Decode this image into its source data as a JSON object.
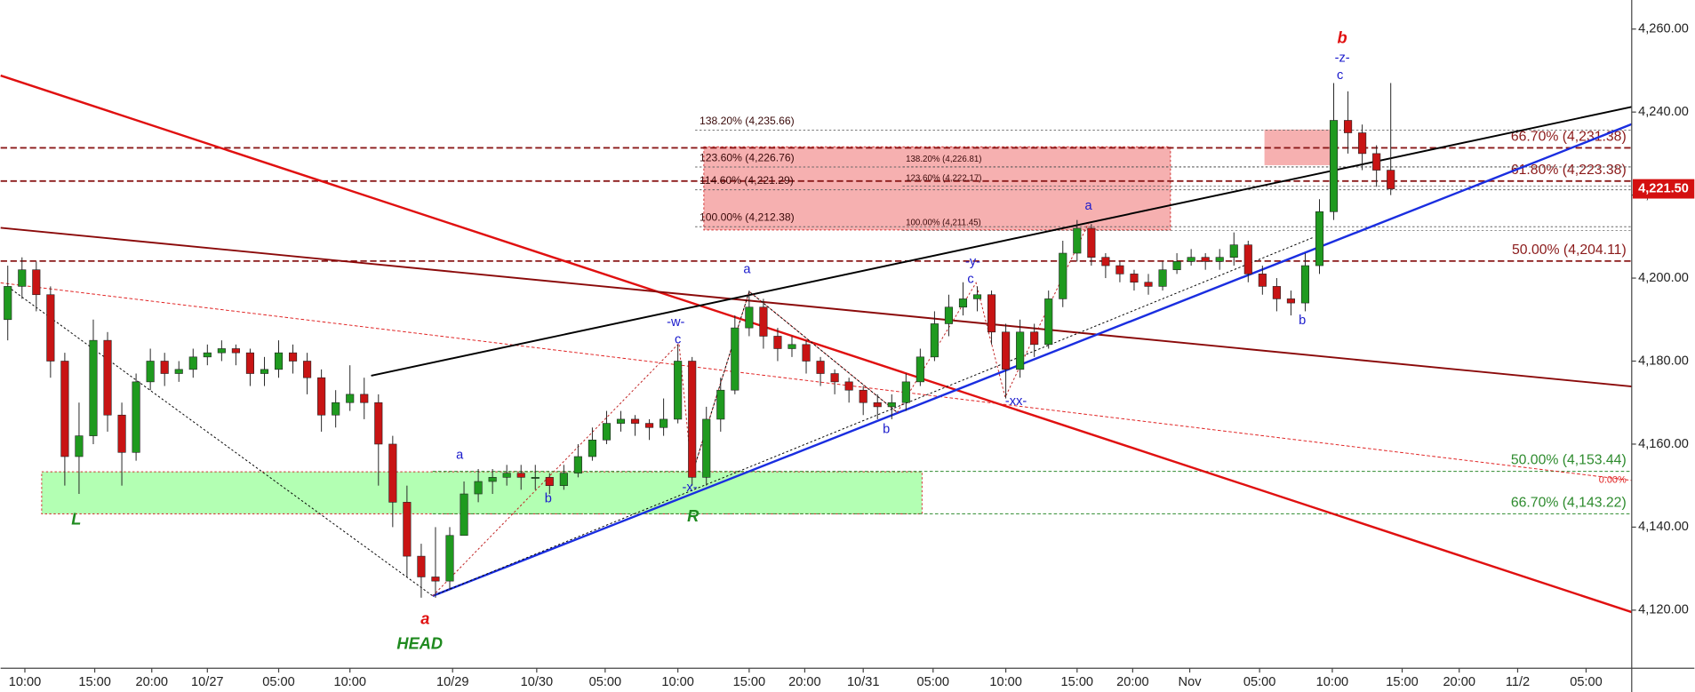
{
  "chart_data": {
    "type": "candlestick",
    "candles": {
      "x": [
        0,
        1,
        2,
        3,
        4,
        5,
        6,
        7,
        8,
        9,
        10,
        11,
        12,
        13,
        14,
        15,
        16,
        17,
        18,
        19,
        20,
        21,
        22,
        23,
        24,
        25,
        26,
        27,
        28,
        29,
        30,
        31,
        32,
        33,
        34,
        35,
        36,
        37,
        38,
        39,
        40,
        41,
        42,
        43,
        44,
        45,
        46,
        47,
        48,
        49,
        50,
        51,
        52,
        53,
        54,
        55,
        56,
        57,
        58,
        59,
        60,
        61,
        62,
        63,
        64,
        65,
        66,
        67,
        68,
        69,
        70,
        71,
        72,
        73,
        74,
        75,
        76,
        77,
        78,
        79,
        80,
        81,
        82,
        83,
        84,
        85,
        86,
        87,
        88,
        89,
        90,
        91,
        92,
        93,
        94,
        95,
        96,
        97
      ],
      "open": [
        4190,
        4198,
        4202,
        4196,
        4180,
        4157,
        4162,
        4185,
        4167,
        4158,
        4175,
        4180,
        4177,
        4178,
        4181,
        4182,
        4183,
        4182,
        4177,
        4178,
        4182,
        4180,
        4176,
        4167,
        4170,
        4172,
        4170,
        4160,
        4146,
        4133,
        4128,
        4127,
        4138,
        4148,
        4151,
        4152,
        4153,
        4152,
        4152,
        4150,
        4153,
        4157,
        4161,
        4165,
        4166,
        4165,
        4164,
        4166,
        4180,
        4152,
        4166,
        4173,
        4188,
        4193,
        4186,
        4183,
        4184,
        4180,
        4177,
        4175,
        4173,
        4170,
        4169,
        4170,
        4175,
        4181,
        4189,
        4193,
        4195,
        4196,
        4187,
        4178,
        4187,
        4184,
        4195,
        4206,
        4212,
        4205,
        4203,
        4201,
        4199,
        4198,
        4202,
        4204,
        4205,
        4204,
        4205,
        4208,
        4201,
        4198,
        4195,
        4194,
        4203,
        4216,
        4238,
        4235,
        4230,
        4226
      ],
      "high": [
        4203,
        4205,
        4204,
        4198,
        4182,
        4170,
        4190,
        4187,
        4170,
        4177,
        4183,
        4182,
        4180,
        4183,
        4184,
        4185,
        4184,
        4183,
        4181,
        4185,
        4184,
        4182,
        4178,
        4173,
        4179,
        4176,
        4172,
        4162,
        4150,
        4136,
        4140,
        4140,
        4151,
        4154,
        4154,
        4155,
        4155,
        4155,
        4153,
        4155,
        4160,
        4164,
        4168,
        4168,
        4167,
        4166,
        4171,
        4184,
        4181,
        4169,
        4176,
        4191,
        4197,
        4195,
        4188,
        4186,
        4185,
        4181,
        4178,
        4176,
        4174,
        4172,
        4172,
        4177,
        4183,
        4192,
        4196,
        4199,
        4198,
        4197,
        4189,
        4190,
        4189,
        4197,
        4209,
        4214,
        4213,
        4206,
        4204,
        4202,
        4201,
        4204,
        4206,
        4207,
        4206,
        4207,
        4211,
        4209,
        4203,
        4200,
        4197,
        4206,
        4219,
        4247,
        4245,
        4237,
        4232,
        4247
      ],
      "low": [
        4185,
        4195,
        4192,
        4176,
        4150,
        4148,
        4160,
        4163,
        4150,
        4156,
        4173,
        4174,
        4175,
        4176,
        4179,
        4180,
        4179,
        4174,
        4174,
        4176,
        4177,
        4172,
        4163,
        4164,
        4168,
        4166,
        4150,
        4140,
        4128,
        4123,
        4123,
        4125,
        4143,
        4146,
        4148,
        4150,
        4149,
        4149,
        4148,
        4149,
        4152,
        4156,
        4160,
        4163,
        4162,
        4161,
        4162,
        4165,
        4150,
        4150,
        4163,
        4172,
        4186,
        4183,
        4180,
        4181,
        4177,
        4174,
        4172,
        4170,
        4167,
        4166,
        4166,
        4168,
        4174,
        4180,
        4186,
        4191,
        4192,
        4184,
        4171,
        4176,
        4181,
        4183,
        4193,
        4204,
        4203,
        4200,
        4199,
        4197,
        4196,
        4197,
        4201,
        4203,
        4202,
        4202,
        4203,
        4199,
        4196,
        4192,
        4191,
        4192,
        4201,
        4214,
        4230,
        4226,
        4222,
        4220
      ],
      "close": [
        4198,
        4202,
        4196,
        4180,
        4157,
        4162,
        4185,
        4167,
        4158,
        4175,
        4180,
        4177,
        4178,
        4181,
        4182,
        4183,
        4182,
        4177,
        4178,
        4182,
        4180,
        4176,
        4167,
        4170,
        4172,
        4170,
        4160,
        4146,
        4133,
        4128,
        4127,
        4138,
        4148,
        4151,
        4152,
        4153,
        4152,
        4152,
        4150,
        4153,
        4157,
        4161,
        4165,
        4166,
        4165,
        4164,
        4166,
        4180,
        4152,
        4166,
        4173,
        4188,
        4193,
        4186,
        4183,
        4184,
        4180,
        4177,
        4175,
        4173,
        4170,
        4169,
        4170,
        4175,
        4181,
        4189,
        4193,
        4195,
        4196,
        4187,
        4178,
        4187,
        4184,
        4195,
        4206,
        4212,
        4205,
        4203,
        4201,
        4199,
        4198,
        4202,
        4204,
        4205,
        4204,
        4205,
        4208,
        4201,
        4198,
        4195,
        4194,
        4203,
        4216,
        4238,
        4235,
        4230,
        4226,
        4221.5
      ]
    },
    "up_color": "#1f9a1f",
    "down_color": "#c81414",
    "xlim": [
      -0.5,
      113.9
    ],
    "ylim": [
      4106,
      4267
    ],
    "xticks": [
      {
        "value": 1.2,
        "label": "10:00"
      },
      {
        "value": 6.1,
        "label": "15:00"
      },
      {
        "value": 10.1,
        "label": "20:00"
      },
      {
        "value": 14.0,
        "label": "10/27"
      },
      {
        "value": 19.0,
        "label": "05:00"
      },
      {
        "value": 24.0,
        "label": "10:00"
      },
      {
        "value": 31.2,
        "label": "10/29"
      },
      {
        "value": 37.1,
        "label": "10/30"
      },
      {
        "value": 41.9,
        "label": "05:00"
      },
      {
        "value": 47.0,
        "label": "10:00"
      },
      {
        "value": 52.0,
        "label": "15:00"
      },
      {
        "value": 55.9,
        "label": "20:00"
      },
      {
        "value": 60.0,
        "label": "10/31"
      },
      {
        "value": 64.9,
        "label": "05:00"
      },
      {
        "value": 70.0,
        "label": "10:00"
      },
      {
        "value": 75.0,
        "label": "15:00"
      },
      {
        "value": 78.9,
        "label": "20:00"
      },
      {
        "value": 82.9,
        "label": "Nov"
      },
      {
        "value": 87.8,
        "label": "05:00"
      },
      {
        "value": 92.9,
        "label": "10:00"
      },
      {
        "value": 97.8,
        "label": "15:00"
      },
      {
        "value": 101.8,
        "label": "20:00"
      },
      {
        "value": 105.9,
        "label": "11/2"
      },
      {
        "value": 110.7,
        "label": "05:00"
      }
    ],
    "yticks": [
      {
        "value": 4260,
        "label": "4,260.00"
      },
      {
        "value": 4240,
        "label": "4,240.00"
      },
      {
        "value": 4220,
        "label": "4,220.00"
      },
      {
        "value": 4200,
        "label": "4,200.00"
      },
      {
        "value": 4180,
        "label": "4,180.00"
      },
      {
        "value": 4160,
        "label": "4,160.00"
      },
      {
        "value": 4140,
        "label": "4,140.00"
      },
      {
        "value": 4120,
        "label": "4,120.00"
      }
    ],
    "last_price": {
      "value": 4221.5,
      "label": "4,221.50"
    },
    "major_levels": [
      {
        "value": 4231.38,
        "label": "66.70% (4,231.38)"
      },
      {
        "value": 4223.38,
        "label": "61.80% (4,223.38)"
      },
      {
        "value": 4204.11,
        "label": "50.00% (4,204.11)"
      }
    ],
    "target_levels": [
      {
        "value": 4153.44,
        "label": "50.00% (4,153.44)"
      },
      {
        "value": 4143.22,
        "label": "66.70% (4,143.22)"
      }
    ],
    "fib_levels": [
      {
        "value": 4235.66,
        "label": "138.20% (4,235.66)"
      },
      {
        "value": 4226.76,
        "label": "123.60% (4,226.76)"
      },
      {
        "value": 4221.29,
        "label": "114.60% (4,221.29)"
      },
      {
        "value": 4212.38,
        "label": "100.00% (4,212.38)"
      }
    ],
    "inner_fib_levels": [
      {
        "value": 4226.81,
        "label": "138.20% (4,226.81)"
      },
      {
        "value": 4222.17,
        "label": "123.60% (4,222.17)"
      },
      {
        "value": 4211.45,
        "label": "100.00% (4,211.45)"
      }
    ],
    "annotations": [
      "b",
      "-z-",
      "c",
      "a",
      "a",
      "-y-",
      "c",
      "-w-",
      "c",
      "b",
      "-xx-",
      "b",
      "a",
      "b",
      "-x-",
      "L",
      "R",
      "a",
      "HEAD",
      "0.00%"
    ]
  }
}
